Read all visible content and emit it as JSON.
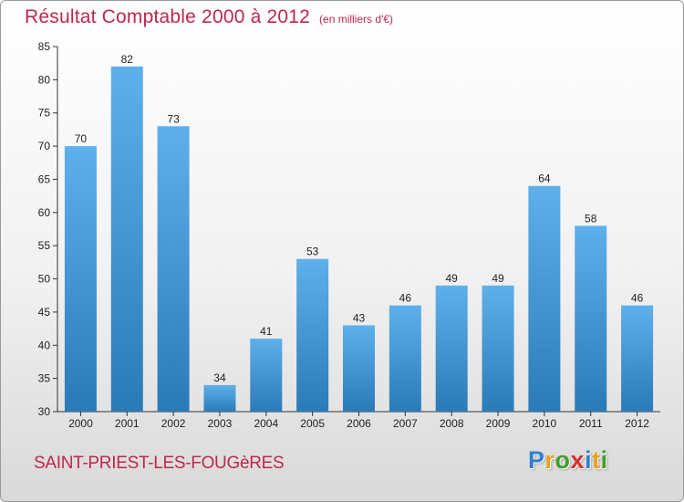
{
  "title": "Résultat Comptable 2000 à 2012",
  "subtitle": "(en milliers d'€)",
  "place_name": "SAINT-PRIEST-LES-FOUGèRES",
  "logo": {
    "letters": [
      "P",
      "r",
      "o",
      "x",
      "i",
      "t",
      "i"
    ],
    "colors": [
      "#2f7fd0",
      "#e6a31e",
      "#3f9f2a",
      "#d6312e",
      "#2f7fd0",
      "#e6a31e",
      "#3f9f2a"
    ]
  },
  "colors": {
    "bar_light": "#5eb0ea",
    "bar_dark": "#2a7ab8",
    "accent": "#c0264d"
  },
  "chart_data": {
    "type": "bar",
    "categories": [
      "2000",
      "2001",
      "2002",
      "2003",
      "2004",
      "2005",
      "2006",
      "2007",
      "2008",
      "2009",
      "2010",
      "2011",
      "2012"
    ],
    "values": [
      70,
      82,
      73,
      34,
      41,
      53,
      43,
      46,
      49,
      49,
      64,
      58,
      46
    ],
    "title": "Résultat Comptable 2000 à 2012",
    "xlabel": "",
    "ylabel": "",
    "ylim": [
      30,
      85
    ],
    "yticks": [
      30,
      35,
      40,
      45,
      50,
      55,
      60,
      65,
      70,
      75,
      80,
      85
    ],
    "grid": false,
    "data_labels": true
  }
}
